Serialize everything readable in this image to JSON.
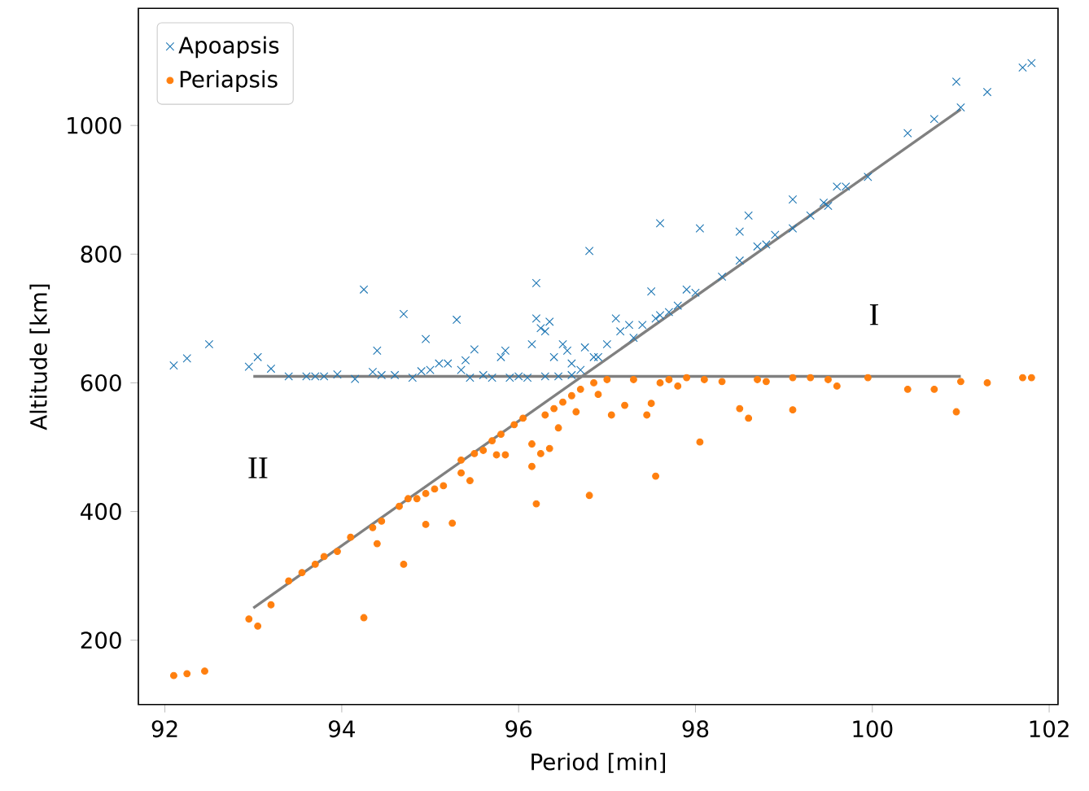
{
  "chart_data": {
    "type": "scatter",
    "xlabel": "Period [min]",
    "ylabel": "Altitude [km]",
    "xlim": [
      91.7,
      102.1
    ],
    "ylim": [
      100,
      1182
    ],
    "xticks": [
      92,
      94,
      96,
      98,
      100,
      102
    ],
    "yticks": [
      200,
      400,
      600,
      800,
      1000
    ],
    "grid": false,
    "legend": "top left",
    "annotations": [
      "I",
      "II"
    ],
    "series": [
      {
        "name": "Apoapsis",
        "marker": "cross",
        "color": "#1f77b4",
        "x": [
          92.1,
          92.25,
          92.5,
          92.95,
          93.05,
          93.2,
          93.4,
          93.6,
          93.7,
          93.8,
          93.95,
          94.15,
          94.25,
          94.35,
          94.4,
          94.45,
          94.7,
          94.6,
          94.8,
          94.9,
          94.95,
          95.0,
          95.1,
          95.2,
          95.3,
          95.35,
          95.4,
          95.45,
          95.5,
          95.6,
          95.7,
          95.8,
          95.85,
          95.9,
          96.0,
          96.1,
          96.15,
          96.2,
          96.2,
          96.25,
          96.3,
          96.3,
          96.35,
          96.4,
          96.45,
          96.5,
          96.55,
          96.6,
          96.6,
          96.7,
          96.75,
          96.8,
          96.85,
          96.9,
          97.0,
          97.1,
          97.15,
          97.25,
          97.3,
          97.4,
          97.5,
          97.55,
          97.6,
          97.6,
          97.7,
          97.8,
          97.9,
          98.0,
          98.05,
          98.3,
          98.5,
          98.5,
          98.6,
          98.7,
          98.8,
          98.9,
          99.1,
          99.1,
          99.3,
          99.45,
          99.5,
          99.6,
          99.7,
          99.95,
          100.4,
          100.7,
          100.95,
          101.0,
          101.3,
          101.7,
          101.8
        ],
        "values": [
          627,
          638,
          660,
          625,
          640,
          622,
          610,
          610,
          610,
          610,
          613,
          606,
          745,
          617,
          650,
          612,
          707,
          612,
          608,
          618,
          668,
          620,
          630,
          630,
          698,
          620,
          635,
          608,
          652,
          612,
          608,
          640,
          650,
          608,
          610,
          608,
          660,
          755,
          700,
          685,
          680,
          610,
          695,
          640,
          610,
          660,
          650,
          630,
          612,
          620,
          655,
          805,
          640,
          640,
          660,
          700,
          680,
          690,
          670,
          690,
          742,
          700,
          705,
          848,
          710,
          720,
          745,
          740,
          840,
          765,
          790,
          835,
          860,
          812,
          815,
          830,
          885,
          840,
          860,
          880,
          875,
          905,
          905,
          920,
          988,
          1010,
          1068,
          1028,
          1052,
          1090,
          1097
        ]
      },
      {
        "name": "Periapsis",
        "marker": "circle",
        "color": "#ff7f0e",
        "x": [
          92.1,
          92.25,
          92.45,
          92.95,
          93.05,
          93.2,
          93.4,
          93.55,
          93.7,
          93.8,
          93.95,
          94.1,
          94.25,
          94.35,
          94.4,
          94.45,
          94.65,
          94.7,
          94.75,
          94.85,
          94.95,
          94.95,
          95.05,
          95.15,
          95.25,
          95.35,
          95.35,
          95.45,
          95.5,
          95.6,
          95.7,
          95.75,
          95.8,
          95.85,
          95.95,
          96.05,
          96.15,
          96.15,
          96.2,
          96.25,
          96.3,
          96.35,
          96.4,
          96.45,
          96.5,
          96.6,
          96.65,
          96.7,
          96.8,
          96.85,
          96.9,
          97.0,
          97.05,
          97.2,
          97.3,
          97.45,
          97.5,
          97.55,
          97.6,
          97.7,
          97.8,
          97.9,
          98.05,
          98.1,
          98.3,
          98.5,
          98.6,
          98.7,
          98.8,
          99.1,
          99.1,
          99.3,
          99.5,
          99.6,
          99.95,
          100.4,
          100.7,
          100.95,
          101.0,
          101.3,
          101.7,
          101.8
        ],
        "values": [
          145,
          148,
          152,
          233,
          222,
          255,
          292,
          305,
          318,
          330,
          338,
          360,
          235,
          375,
          350,
          385,
          408,
          318,
          420,
          420,
          380,
          428,
          435,
          440,
          382,
          460,
          480,
          448,
          490,
          495,
          510,
          488,
          520,
          488,
          535,
          545,
          505,
          470,
          412,
          490,
          550,
          498,
          560,
          530,
          570,
          580,
          555,
          590,
          425,
          600,
          582,
          605,
          550,
          565,
          605,
          550,
          568,
          455,
          600,
          605,
          595,
          608,
          508,
          605,
          602,
          560,
          545,
          605,
          602,
          558,
          608,
          608,
          605,
          595,
          608,
          590,
          590,
          555,
          602,
          600,
          608,
          608
        ]
      },
      {
        "type": "line",
        "marker": "none",
        "color": "#808080",
        "x": [
          93,
          101
        ],
        "values": [
          610,
          610
        ]
      },
      {
        "type": "line",
        "marker": "none",
        "color": "#808080",
        "x": [
          93,
          101
        ],
        "values": [
          250,
          1025
        ]
      }
    ]
  }
}
